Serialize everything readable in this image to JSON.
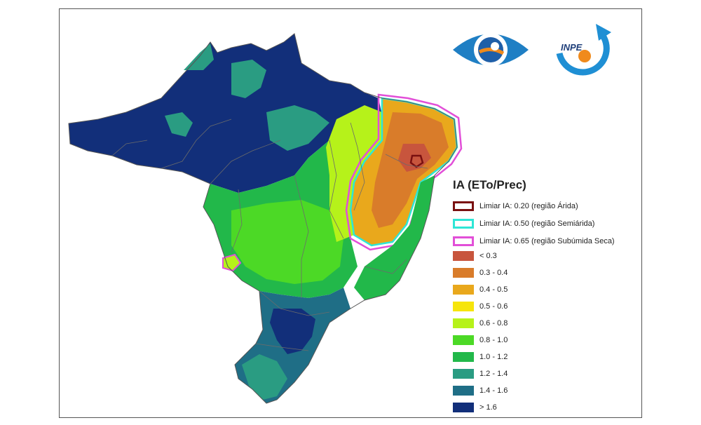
{
  "legend": {
    "title": "IA (ETo/Prec)",
    "thresholds": [
      {
        "label": "Limiar IA: 0.20 (região Árida)",
        "color": "#7a1010"
      },
      {
        "label": "Limiar IA: 0.50 (região Semiárida)",
        "color": "#2ee6d6"
      },
      {
        "label": "Limiar IA: 0.65 (região Subúmida Seca)",
        "color": "#e24fd8"
      }
    ],
    "classes": [
      {
        "label": "< 0.3",
        "color": "#c8553d"
      },
      {
        "label": "0.3 - 0.4",
        "color": "#d97c2a"
      },
      {
        "label": "0.4 - 0.5",
        "color": "#e9a81c"
      },
      {
        "label": "0.5 - 0.6",
        "color": "#f6e50c"
      },
      {
        "label": "0.6 - 0.8",
        "color": "#b6f21a"
      },
      {
        "label": "0.8 - 1.0",
        "color": "#4cd926"
      },
      {
        "label": "1.0 - 1.2",
        "color": "#22b84a"
      },
      {
        "label": "1.2 - 1.4",
        "color": "#2a9c82"
      },
      {
        "label": "1.4 - 1.6",
        "color": "#1f6e86"
      },
      {
        "label": "> 1.6",
        "color": "#122f7a"
      }
    ]
  },
  "logos": {
    "left": "cptec-eye-logo",
    "right_text": "INPE"
  }
}
